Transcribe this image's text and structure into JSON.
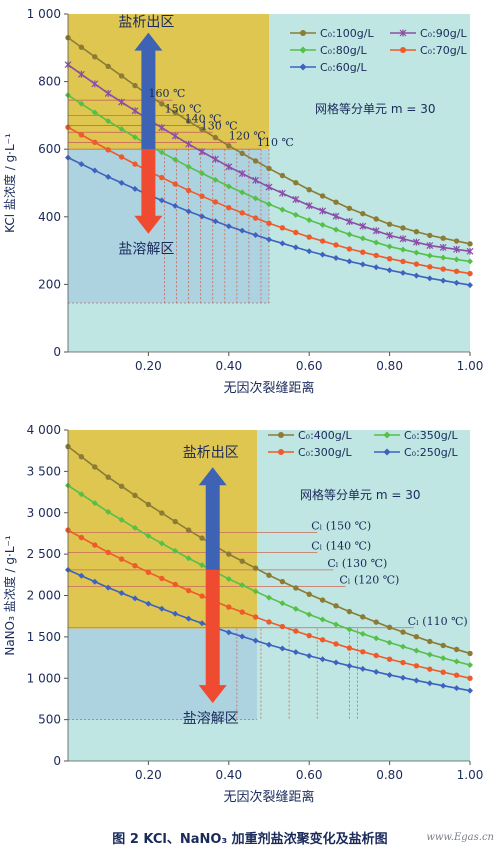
{
  "colors": {
    "background": "#ffffff",
    "plot_bg": "#bfe6e2",
    "gold": "#e1c240",
    "salt_dissolve_bg": "#a9cfe0",
    "grid_line": "#c86a5a",
    "arrow_up": "#3e63b4",
    "arrow_down": "#ee4b31",
    "caption": "#1a2a5a"
  },
  "caption": "图 2   KCl、NaNO₃ 加重剂盐浓聚变化及盐析图",
  "watermark": "www.Egas.cn",
  "chart_data": [
    {
      "type": "line",
      "xlabel": "无因次裂缝距离",
      "ylabel": "KCl 盐浓度 / g·L⁻¹",
      "xlim": [
        0,
        1
      ],
      "ylim": [
        0,
        1000
      ],
      "xticks": [
        "0.20",
        "0.40",
        "0.60",
        "0.80",
        "1.00"
      ],
      "yticks": [
        "0",
        "200",
        "400",
        "600",
        "800",
        "1 000"
      ],
      "x": [
        0.0,
        0.1,
        0.2,
        0.3,
        0.4,
        0.5,
        0.6,
        0.7,
        0.8,
        0.9,
        1.0
      ],
      "series": [
        {
          "name": "C₀:100g/L",
          "color": "#8c7b35",
          "marker": "circle",
          "values": [
            930,
            845,
            760,
            683,
            610,
            543,
            480,
            425,
            378,
            345,
            320
          ]
        },
        {
          "name": "C₀:90g/L",
          "color": "#8a4ea8",
          "marker": "asterisk",
          "values": [
            850,
            765,
            688,
            615,
            548,
            488,
            433,
            386,
            345,
            315,
            298
          ]
        },
        {
          "name": "C₀:80g/L",
          "color": "#55c048",
          "marker": "diamond",
          "values": [
            760,
            683,
            612,
            548,
            490,
            437,
            390,
            348,
            312,
            285,
            268
          ]
        },
        {
          "name": "C₀:70g/L",
          "color": "#ef5a2b",
          "marker": "circle",
          "values": [
            665,
            598,
            535,
            478,
            427,
            381,
            340,
            305,
            276,
            252,
            232
          ]
        },
        {
          "name": "C₀:60g/L",
          "color": "#3d62c0",
          "marker": "diamond",
          "values": [
            575,
            518,
            465,
            416,
            372,
            333,
            298,
            268,
            242,
            218,
            198
          ]
        }
      ],
      "annotations": {
        "region_precipitate": "盐析出区",
        "region_dissolve": "盐溶解区",
        "grid_note": "网格等分单元 m = 30",
        "thresholds": [
          {
            "label": "160 ℃",
            "y": 745,
            "x_end": 0.26
          },
          {
            "label": "150 ℃",
            "y": 700,
            "x_end": 0.29
          },
          {
            "label": "140 ℃",
            "y": 670,
            "x_end": 0.33
          },
          {
            "label": "130 ℃",
            "y": 650,
            "x_end": 0.36
          },
          {
            "label": "120 ℃",
            "y": 620,
            "x_end": 0.42
          },
          {
            "label": "110 ℃",
            "y": 600,
            "x_end": 0.48
          }
        ],
        "dashed_x": [
          0.24,
          0.27,
          0.3,
          0.33,
          0.36,
          0.39,
          0.42,
          0.45,
          0.48,
          0.5
        ],
        "dashed_floor": 145,
        "gold_region": {
          "x_end": 0.5,
          "y_min": 600
        },
        "blue_region": {
          "x_end": 0.5,
          "y_max": 600,
          "y_min": 145
        },
        "arrow_x": 0.2,
        "arrow_split_y": 600,
        "arrow_top": 945,
        "arrow_bottom": 350
      }
    },
    {
      "type": "line",
      "xlabel": "无因次裂缝距离",
      "ylabel": "NaNO₃ 盐浓度 / g·L⁻¹",
      "xlim": [
        0,
        1
      ],
      "ylim": [
        0,
        4000
      ],
      "xticks": [
        "0.20",
        "0.40",
        "0.60",
        "0.80",
        "1.00"
      ],
      "yticks": [
        "0",
        "500",
        "1 000",
        "1 500",
        "2 000",
        "2 500",
        "3 000",
        "3 500",
        "4 000"
      ],
      "x": [
        0.0,
        0.1,
        0.2,
        0.3,
        0.4,
        0.5,
        0.6,
        0.7,
        0.8,
        0.9,
        1.0
      ],
      "series": [
        {
          "name": "C₀:400g/L",
          "color": "#8c7b35",
          "marker": "circle",
          "values": [
            3800,
            3430,
            3100,
            2790,
            2500,
            2245,
            2015,
            1805,
            1615,
            1445,
            1300
          ]
        },
        {
          "name": "C₀:350g/L",
          "color": "#55c048",
          "marker": "diamond",
          "values": [
            3330,
            3010,
            2720,
            2450,
            2200,
            1975,
            1770,
            1590,
            1430,
            1285,
            1160
          ]
        },
        {
          "name": "C₀:300g/L",
          "color": "#ef5a2b",
          "marker": "circle",
          "values": [
            2790,
            2520,
            2280,
            2060,
            1860,
            1680,
            1515,
            1365,
            1230,
            1110,
            1000
          ]
        },
        {
          "name": "C₀:250g/L",
          "color": "#3d62c0",
          "marker": "diamond",
          "values": [
            2310,
            2095,
            1900,
            1720,
            1555,
            1405,
            1270,
            1150,
            1040,
            940,
            850
          ]
        }
      ],
      "annotations": {
        "region_precipitate": "盐析出区",
        "region_dissolve": "盐溶解区",
        "grid_note": "网格等分单元 m = 30",
        "thresholds": [
          {
            "label": "Cₗ (150 ℃)",
            "y": 2760,
            "x_end": 0.62
          },
          {
            "label": "Cₗ (140 ℃)",
            "y": 2520,
            "x_end": 0.62
          },
          {
            "label": "Cₗ (130 ℃)",
            "y": 2310,
            "x_end": 0.66
          },
          {
            "label": "Cₗ (120 ℃)",
            "y": 2110,
            "x_end": 0.69
          },
          {
            "label": "Cₗ (110 ℃)",
            "y": 1610,
            "x_end": 0.86
          }
        ],
        "dashed_x": [
          0.42,
          0.48,
          0.55,
          0.62,
          0.7,
          0.72
        ],
        "dashed_floor": 500,
        "gold_region": {
          "x_end": 0.47,
          "y_min": 1600
        },
        "blue_region": {
          "x_end": 0.47,
          "y_max": 1600,
          "y_min": 500
        },
        "arrow_x": 0.36,
        "arrow_split_y": 2310,
        "arrow_top": 3550,
        "arrow_bottom": 700
      }
    }
  ]
}
